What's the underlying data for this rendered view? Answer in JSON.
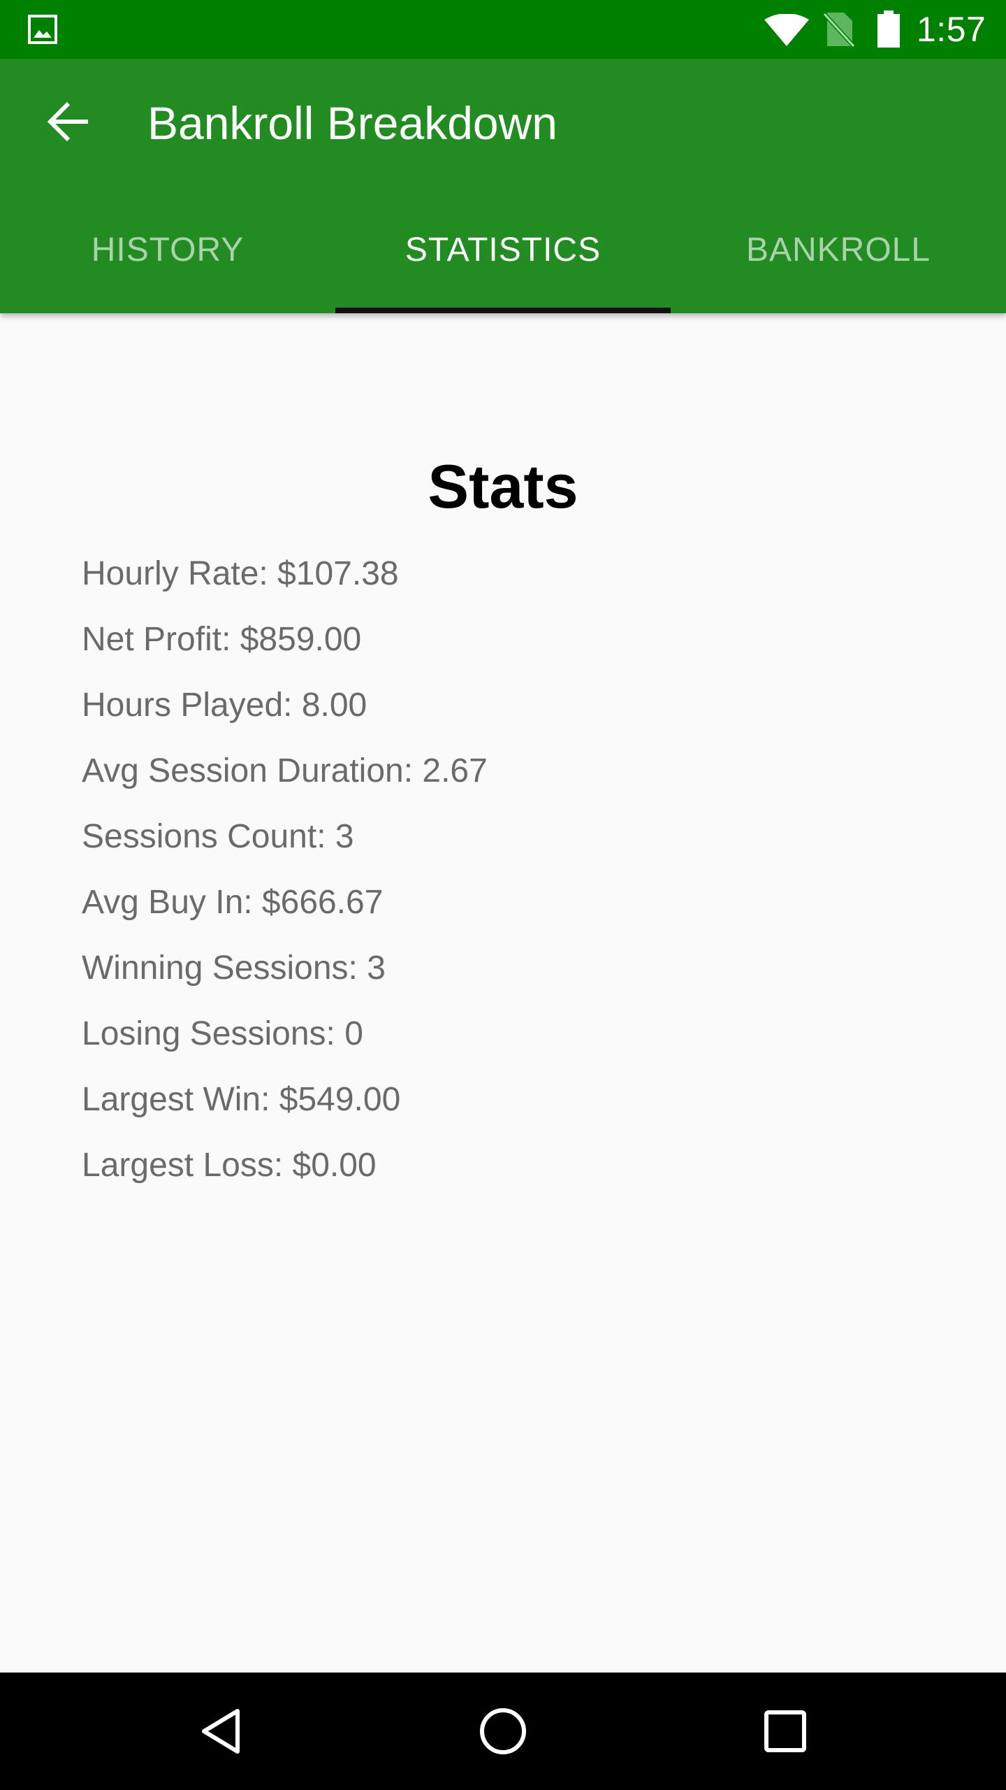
{
  "status_bar": {
    "time": "1:57",
    "icons": [
      "image-notification-icon",
      "wifi-icon",
      "no-sim-icon",
      "battery-icon"
    ]
  },
  "app_bar": {
    "title": "Bankroll Breakdown",
    "back_icon": "arrow-back-icon",
    "color": "#228b22"
  },
  "tabs": [
    {
      "label": "HISTORY",
      "active": false
    },
    {
      "label": "STATISTICS",
      "active": true
    },
    {
      "label": "BANKROLL",
      "active": false
    }
  ],
  "stats": {
    "heading": "Stats",
    "items": [
      "Hourly Rate: $107.38",
      "Net Profit: $859.00",
      "Hours Played: 8.00",
      "Avg Session Duration: 2.67",
      "Sessions Count: 3",
      "Avg Buy In: $666.67",
      "Winning Sessions: 3",
      "Losing Sessions: 0",
      "Largest Win: $549.00",
      "Largest Loss: $0.00"
    ]
  },
  "nav_bar": {
    "icons": [
      "nav-back-icon",
      "nav-home-icon",
      "nav-recents-icon"
    ]
  },
  "colors": {
    "status_bar": "#008000",
    "app_bar": "#228b22",
    "tab_indicator": "#111111",
    "background": "#fafafa"
  }
}
